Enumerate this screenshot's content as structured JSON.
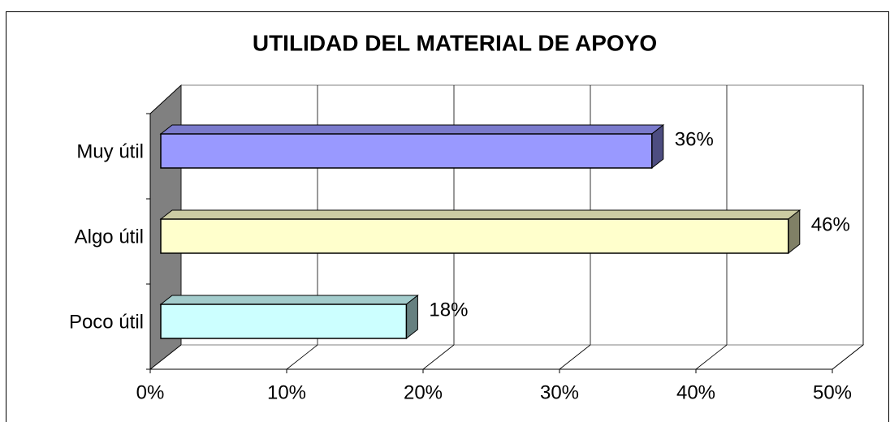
{
  "chart_data": {
    "type": "bar",
    "orientation": "horizontal",
    "title": "UTILIDAD DEL MATERIAL DE APOYO",
    "categories": [
      "Muy útil",
      "Algo útil",
      "Poco útil"
    ],
    "values": [
      36,
      46,
      18
    ],
    "value_labels": [
      "36%",
      "46%",
      "18%"
    ],
    "colors": [
      "#9999ff",
      "#ffffcc",
      "#ccffff"
    ],
    "xlim": [
      0,
      50
    ],
    "xticks": [
      {
        "value": 0,
        "label": "0%"
      },
      {
        "value": 10,
        "label": "10%"
      },
      {
        "value": 20,
        "label": "20%"
      },
      {
        "value": 30,
        "label": "30%"
      },
      {
        "value": 40,
        "label": "40%"
      },
      {
        "value": 50,
        "label": "50%"
      }
    ],
    "grid": true
  }
}
